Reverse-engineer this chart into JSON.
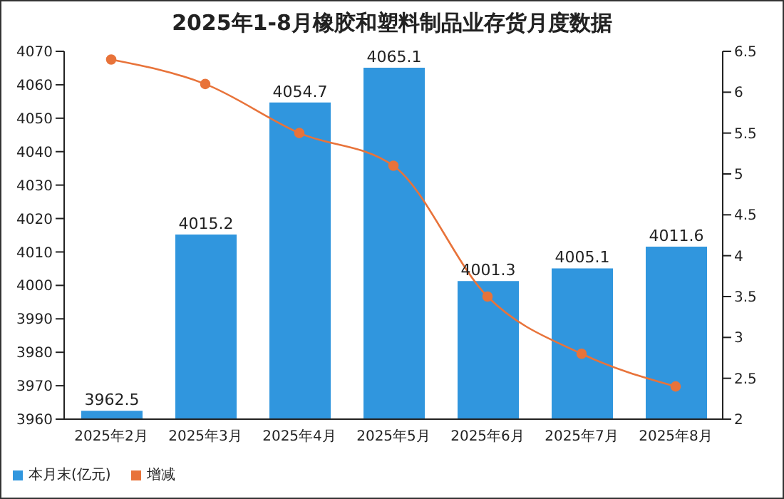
{
  "chart_data": {
    "type": "bar",
    "title": "2025年1-8月橡胶和塑料制品业存货月度数据",
    "categories": [
      "2025年2月",
      "2025年3月",
      "2025年4月",
      "2025年5月",
      "2025年6月",
      "2025年7月",
      "2025年8月"
    ],
    "series": [
      {
        "name": "本月末(亿元)",
        "color": "#3096de",
        "values": [
          3962.5,
          4015.2,
          4054.7,
          4065.1,
          4001.3,
          4005.1,
          4011.6
        ],
        "value_labels": [
          "3962.5",
          "4015.2",
          "4054.7",
          "4065.1",
          "4001.3",
          "4005.1",
          "4011.6"
        ]
      },
      {
        "name": "增减",
        "type": "line",
        "axis": "y2",
        "color": "#e8733a",
        "values": [
          6.4,
          6.1,
          5.5,
          5.1,
          3.5,
          2.8,
          2.4
        ]
      }
    ],
    "ylim": [
      3960,
      4070
    ],
    "yticks": [
      3960,
      3970,
      3980,
      3990,
      4000,
      4010,
      4020,
      4030,
      4040,
      4050,
      4060,
      4070
    ],
    "y2lim": [
      2,
      6.5
    ],
    "y2ticks": [
      2,
      2.5,
      3,
      3.5,
      4,
      4.5,
      5,
      5.5,
      6,
      6.5
    ],
    "grid": false,
    "legend": "bottom left",
    "marker": "circle",
    "line_style": "solid"
  }
}
